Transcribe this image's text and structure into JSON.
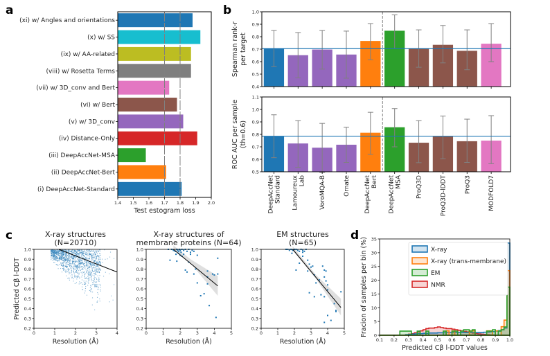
{
  "panel_labels": [
    "a",
    "b",
    "c",
    "d"
  ],
  "chart_data": [
    {
      "id": "a",
      "type": "bar",
      "orientation": "horizontal",
      "title": "",
      "xlabel": "Test estogram loss",
      "ylabel": "",
      "xlim": [
        1.4,
        2.0
      ],
      "xticks": [
        "1.4",
        "1.5",
        "1.6",
        "1.7",
        "1.8",
        "1.9",
        "2.0"
      ],
      "reference_lines": [
        1.7,
        1.8
      ],
      "categories": [
        "(xi) w/ Angles and orientations",
        "(x) w/ SS",
        "(ix) w/ AA-related",
        "(viii) w/ Rosetta Terms",
        "(vii) w/ 3D_conv and Bert",
        "(vi) w/ Bert",
        "(v) w/ 3D_conv",
        "(iv) Distance-Only",
        "(iii) DeepAccNet-MSA",
        "(ii) DeepAccNet-Bert",
        "(i) DeepAccNet-Standard"
      ],
      "values": [
        1.88,
        1.93,
        1.87,
        1.87,
        1.73,
        1.78,
        1.82,
        1.91,
        1.58,
        1.71,
        1.81
      ],
      "colors": [
        "#1f77b4",
        "#17becf",
        "#bcbd22",
        "#7f7f7f",
        "#e377c2",
        "#8c564b",
        "#9467bd",
        "#d62728",
        "#2ca02c",
        "#ff7f0e",
        "#1f77b4"
      ]
    },
    {
      "id": "b-top",
      "type": "bar",
      "ylabel": "Spearman rank-r per target",
      "ylim": [
        0.4,
        1.0
      ],
      "yticks": [
        "0.4",
        "0.5",
        "0.6",
        "0.7",
        "0.8",
        "0.9",
        "1.0"
      ],
      "reference_line": 0.705,
      "divider_after_index": 4,
      "categories": [
        "DeepAccNet Standard",
        "Lamoureux Lab",
        "VoroMQA-B",
        "Ornate",
        "DeepAccNet Bert",
        "DeepAccNet MSA",
        "ProQ3D",
        "ProQ3D-lDDT",
        "ProQ3",
        "MODFOLD7"
      ],
      "values": [
        0.705,
        0.652,
        0.697,
        0.657,
        0.766,
        0.848,
        0.705,
        0.735,
        0.687,
        0.744
      ],
      "err_low": [
        0.56,
        0.47,
        0.54,
        0.467,
        0.615,
        0.705,
        0.555,
        0.59,
        0.535,
        0.6
      ],
      "err_high": [
        0.85,
        0.833,
        0.85,
        0.845,
        0.905,
        0.975,
        0.855,
        0.89,
        0.855,
        0.905
      ],
      "colors": [
        "#1f77b4",
        "#9467bd",
        "#9467bd",
        "#9467bd",
        "#ff7f0e",
        "#2ca02c",
        "#8c564b",
        "#8c564b",
        "#8c564b",
        "#e377c2"
      ]
    },
    {
      "id": "b-bottom",
      "type": "bar",
      "ylabel": "ROC AUC per sample (th=0.6)",
      "ylim": [
        0.5,
        1.1
      ],
      "yticks": [
        "0.5",
        "0.6",
        "0.7",
        "0.8",
        "0.9",
        "1.0",
        "1.1"
      ],
      "reference_line": 0.785,
      "divider_after_index": 4,
      "categories": [
        "DeepAccNet Standard",
        "Lamoureux Lab",
        "VoroMQA-B",
        "Ornate",
        "DeepAccNet Bert",
        "DeepAccNet MSA",
        "ProQ3D",
        "ProQ3D-lDDT",
        "ProQ3",
        "MODFOLD7"
      ],
      "values": [
        0.785,
        0.727,
        0.693,
        0.717,
        0.813,
        0.857,
        0.733,
        0.785,
        0.745,
        0.75
      ],
      "err_low": [
        0.613,
        0.535,
        0.495,
        0.575,
        0.64,
        0.7,
        0.573,
        0.605,
        0.575,
        0.565
      ],
      "err_high": [
        0.957,
        0.91,
        0.888,
        0.857,
        0.977,
        1.007,
        0.91,
        0.947,
        0.922,
        0.95
      ],
      "colors": [
        "#1f77b4",
        "#9467bd",
        "#9467bd",
        "#9467bd",
        "#ff7f0e",
        "#2ca02c",
        "#8c564b",
        "#8c564b",
        "#8c564b",
        "#e377c2"
      ]
    },
    {
      "id": "c1",
      "type": "scatter",
      "title": "X-ray structures\n(N=20710)",
      "title_lines": [
        "X-ray structures",
        "(N=20710)"
      ],
      "xlabel": "Resolution (Å)",
      "ylabel": "Predicted Cβ l-DDT",
      "xlim": [
        0,
        4
      ],
      "ylim": [
        0.2,
        1.0
      ],
      "xticks": [
        "0",
        "1",
        "2",
        "3",
        "4"
      ],
      "yticks": [
        "0.2",
        "0.3",
        "0.4",
        "0.5",
        "0.6",
        "0.7",
        "0.8",
        "0.9",
        "1.0"
      ],
      "fit_line": {
        "x": [
          1.2,
          4.0
        ],
        "y": [
          1.0,
          0.77
        ]
      },
      "point_color": "#1f77b4",
      "note": "dense cloud, ~20710 points concentrated at 1-3 Å and 0.8-1.0"
    },
    {
      "id": "c2",
      "type": "scatter",
      "title_lines": [
        "X-ray structures of",
        "membrane proteins (N=64)"
      ],
      "xlabel": "Resolution (Å)",
      "ylabel": "",
      "xlim": [
        0,
        5
      ],
      "ylim": [
        0.2,
        1.0
      ],
      "xticks": [
        "0",
        "1",
        "2",
        "3",
        "4",
        "5"
      ],
      "yticks": [
        "0.2",
        "0.3",
        "0.4",
        "0.5",
        "0.6",
        "0.7",
        "0.8",
        "0.9",
        "1.0"
      ],
      "fit_line": {
        "x": [
          1.6,
          4.2
        ],
        "y": [
          1.02,
          0.63
        ]
      },
      "ci_band": {
        "x": [
          1.6,
          2.6,
          4.2
        ],
        "low": [
          1.0,
          0.86,
          0.53
        ],
        "high": [
          1.04,
          0.9,
          0.73
        ]
      },
      "points": [
        [
          1.3,
          1.0
        ],
        [
          1.5,
          1.0
        ],
        [
          1.6,
          0.99
        ],
        [
          1.7,
          0.98
        ],
        [
          1.75,
          0.95
        ],
        [
          1.8,
          1.0
        ],
        [
          1.85,
          0.99
        ],
        [
          1.9,
          0.98
        ],
        [
          1.95,
          1.0
        ],
        [
          2.0,
          0.99
        ],
        [
          2.05,
          0.97
        ],
        [
          2.1,
          1.0
        ],
        [
          2.2,
          0.99
        ],
        [
          2.3,
          1.0
        ],
        [
          2.4,
          0.98
        ],
        [
          2.5,
          1.0
        ],
        [
          2.6,
          0.97
        ],
        [
          2.7,
          0.99
        ],
        [
          2.8,
          0.98
        ],
        [
          1.4,
          0.89
        ],
        [
          1.8,
          0.88
        ],
        [
          2.0,
          0.94
        ],
        [
          2.3,
          0.79
        ],
        [
          2.4,
          0.77
        ],
        [
          2.5,
          0.87
        ],
        [
          2.6,
          0.95
        ],
        [
          2.8,
          0.75
        ],
        [
          2.9,
          0.8
        ],
        [
          3.0,
          0.66
        ],
        [
          3.0,
          0.94
        ],
        [
          3.2,
          0.53
        ],
        [
          3.4,
          0.55
        ],
        [
          3.6,
          0.78
        ],
        [
          3.6,
          0.72
        ],
        [
          3.6,
          0.65
        ],
        [
          3.7,
          0.43
        ],
        [
          3.9,
          0.75
        ],
        [
          4.0,
          0.74
        ],
        [
          4.1,
          0.31
        ],
        [
          4.2,
          0.91
        ],
        [
          4.2,
          0.75
        ],
        [
          2.2,
          0.95
        ],
        [
          2.1,
          0.93
        ],
        [
          1.9,
          0.96
        ]
      ],
      "point_color": "#1f77b4"
    },
    {
      "id": "c3",
      "type": "scatter",
      "title_lines": [
        "EM structures",
        "(N=65)"
      ],
      "xlabel": "Resolution (Å)",
      "ylabel": "",
      "xlim": [
        0,
        5
      ],
      "ylim": [
        0.2,
        1.0
      ],
      "xticks": [
        "0",
        "1",
        "2",
        "3",
        "4",
        "5"
      ],
      "yticks": [
        "0.2",
        "0.3",
        "0.4",
        "0.5",
        "0.6",
        "0.7",
        "0.8",
        "0.9",
        "1.0"
      ],
      "fit_line": {
        "x": [
          1.9,
          4.8
        ],
        "y": [
          1.01,
          0.41
        ]
      },
      "ci_band": {
        "x": [
          1.9,
          3.3,
          4.8
        ],
        "low": [
          0.99,
          0.7,
          0.33
        ],
        "high": [
          1.03,
          0.74,
          0.5
        ]
      },
      "points": [
        [
          1.5,
          1.0
        ],
        [
          1.6,
          1.0
        ],
        [
          1.7,
          0.99
        ],
        [
          1.8,
          1.0
        ],
        [
          1.85,
          0.96
        ],
        [
          1.9,
          0.99
        ],
        [
          2.0,
          1.0
        ],
        [
          2.1,
          1.0
        ],
        [
          2.2,
          0.99
        ],
        [
          2.3,
          0.98
        ],
        [
          2.4,
          1.0
        ],
        [
          2.5,
          0.99
        ],
        [
          2.6,
          0.98
        ],
        [
          2.7,
          1.0
        ],
        [
          2.1,
          0.79
        ],
        [
          2.3,
          0.86
        ],
        [
          2.5,
          0.93
        ],
        [
          2.5,
          0.97
        ],
        [
          2.8,
          0.89
        ],
        [
          2.8,
          0.78
        ],
        [
          2.9,
          0.85
        ],
        [
          2.9,
          0.56
        ],
        [
          3.0,
          0.82
        ],
        [
          3.1,
          0.83
        ],
        [
          3.2,
          0.74
        ],
        [
          3.2,
          0.52
        ],
        [
          3.3,
          0.66
        ],
        [
          3.5,
          0.69
        ],
        [
          3.6,
          0.54
        ],
        [
          3.7,
          0.83
        ],
        [
          3.8,
          0.79
        ],
        [
          3.8,
          0.72
        ],
        [
          3.8,
          0.52
        ],
        [
          3.8,
          0.26
        ],
        [
          3.9,
          0.78
        ],
        [
          3.9,
          0.68
        ],
        [
          4.0,
          0.64
        ],
        [
          4.0,
          0.59
        ],
        [
          4.0,
          0.33
        ],
        [
          4.2,
          0.28
        ],
        [
          4.4,
          0.45
        ],
        [
          4.5,
          0.38
        ],
        [
          4.5,
          0.37
        ],
        [
          4.8,
          0.57
        ]
      ],
      "point_color": "#1f77b4"
    },
    {
      "id": "d",
      "type": "histogram",
      "xlabel": "Predicted Cβ l-DDT values",
      "ylabel": "Fracion of samples per bin (%)",
      "xlim": [
        0.1,
        1.0
      ],
      "ylim": [
        0,
        35
      ],
      "xticks": [
        "0.1",
        "0.2",
        "0.3",
        "0.4",
        "0.5",
        "0.6",
        "0.7",
        "0.8",
        "0.9",
        "1.0"
      ],
      "yticks": [
        "0",
        "5",
        "10",
        "15",
        "20",
        "25",
        "30",
        "35"
      ],
      "legend_position": "upper-right",
      "bin_edges_start": 0.1,
      "bin_width": 0.02,
      "series": [
        {
          "name": "X-ray",
          "color": "#1f77b4",
          "values": [
            0,
            0,
            0,
            0,
            0,
            0,
            0,
            0,
            0,
            0.2,
            0.3,
            0.4,
            0.5,
            0.6,
            0.6,
            0.7,
            0.7,
            0.8,
            0.8,
            0.8,
            0.9,
            0.9,
            0.9,
            1.0,
            1.0,
            1.0,
            1.0,
            1.0,
            1.0,
            1.0,
            1.0,
            1.0,
            1.0,
            1.0,
            1.0,
            1.0,
            1.1,
            1.1,
            1.2,
            1.3,
            1.5,
            1.7,
            2.0,
            2.6,
            33.5
          ]
        },
        {
          "name": "X-ray (trans-membrane)",
          "color": "#ff7f0e",
          "values": [
            0,
            0,
            0,
            0,
            0,
            0,
            0,
            0,
            0,
            0,
            0,
            0,
            0,
            0,
            0,
            0,
            0,
            0,
            0,
            0,
            0,
            0,
            0,
            1.6,
            0,
            1.6,
            0,
            0,
            0,
            0,
            0,
            1.6,
            1.6,
            0,
            0,
            0,
            0,
            1.6,
            1.6,
            0,
            1.6,
            0,
            3.1,
            5.5,
            23.5
          ]
        },
        {
          "name": "EM",
          "color": "#2ca02c",
          "values": [
            0,
            0,
            0,
            0,
            0,
            0,
            0,
            1.5,
            1.5,
            1.5,
            1.5,
            0,
            0,
            1.5,
            0,
            0,
            1.5,
            0,
            0,
            0,
            0,
            0,
            1.5,
            0,
            0,
            1.5,
            1.5,
            0,
            1.5,
            2.0,
            2.0,
            1.5,
            2.0,
            0,
            0,
            0,
            0,
            1.5,
            1.5,
            2.0,
            0,
            1.5,
            2.0,
            3.0,
            17.5
          ]
        },
        {
          "name": "NMR",
          "color": "#d62728",
          "values": [
            0,
            0,
            0,
            0,
            0,
            0,
            0,
            0,
            0,
            0.2,
            0.4,
            0.6,
            0.9,
            1.2,
            1.6,
            2.0,
            2.4,
            2.6,
            2.6,
            2.8,
            3.0,
            2.8,
            2.6,
            2.4,
            2.4,
            2.2,
            2.0,
            1.8,
            1.6,
            1.4,
            1.2,
            1.0,
            0.8,
            0.6,
            0.5,
            0.4,
            0.3,
            0.2,
            0.1,
            0.1,
            0,
            0,
            0,
            0,
            0
          ]
        }
      ]
    }
  ]
}
